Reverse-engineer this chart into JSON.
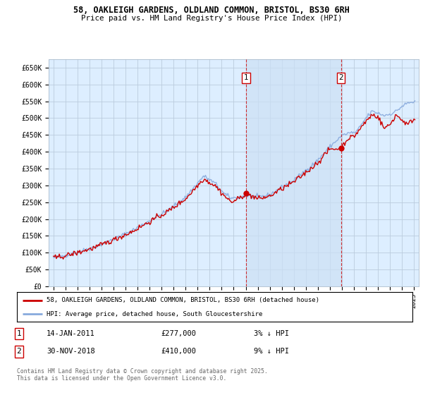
{
  "title_line1": "58, OAKLEIGH GARDENS, OLDLAND COMMON, BRISTOL, BS30 6RH",
  "title_line2": "Price paid vs. HM Land Registry's House Price Index (HPI)",
  "ylabel_ticks": [
    "£0",
    "£50K",
    "£100K",
    "£150K",
    "£200K",
    "£250K",
    "£300K",
    "£350K",
    "£400K",
    "£450K",
    "£500K",
    "£550K",
    "£600K",
    "£650K"
  ],
  "ytick_values": [
    0,
    50000,
    100000,
    150000,
    200000,
    250000,
    300000,
    350000,
    400000,
    450000,
    500000,
    550000,
    600000,
    650000
  ],
  "ylim": [
    0,
    675000
  ],
  "xlim_start": 1994.6,
  "xlim_end": 2025.4,
  "background_color": "#ddeeff",
  "fill_between_color": "#c8ddf5",
  "grid_color": "#bbccdd",
  "hpi_color": "#88aadd",
  "price_color": "#cc0000",
  "sale1_date": 2011.04,
  "sale1_price": 277000,
  "sale2_date": 2018.92,
  "sale2_price": 410000,
  "sale1_label": "1",
  "sale2_label": "2",
  "legend_line1": "58, OAKLEIGH GARDENS, OLDLAND COMMON, BRISTOL, BS30 6RH (detached house)",
  "legend_line2": "HPI: Average price, detached house, South Gloucestershire",
  "footnote": "Contains HM Land Registry data © Crown copyright and database right 2025.\nThis data is licensed under the Open Government Licence v3.0.",
  "xtick_years": [
    1995,
    1996,
    1997,
    1998,
    1999,
    2000,
    2001,
    2002,
    2003,
    2004,
    2005,
    2006,
    2007,
    2008,
    2009,
    2010,
    2011,
    2012,
    2013,
    2014,
    2015,
    2016,
    2017,
    2018,
    2019,
    2020,
    2021,
    2022,
    2023,
    2024,
    2025
  ]
}
